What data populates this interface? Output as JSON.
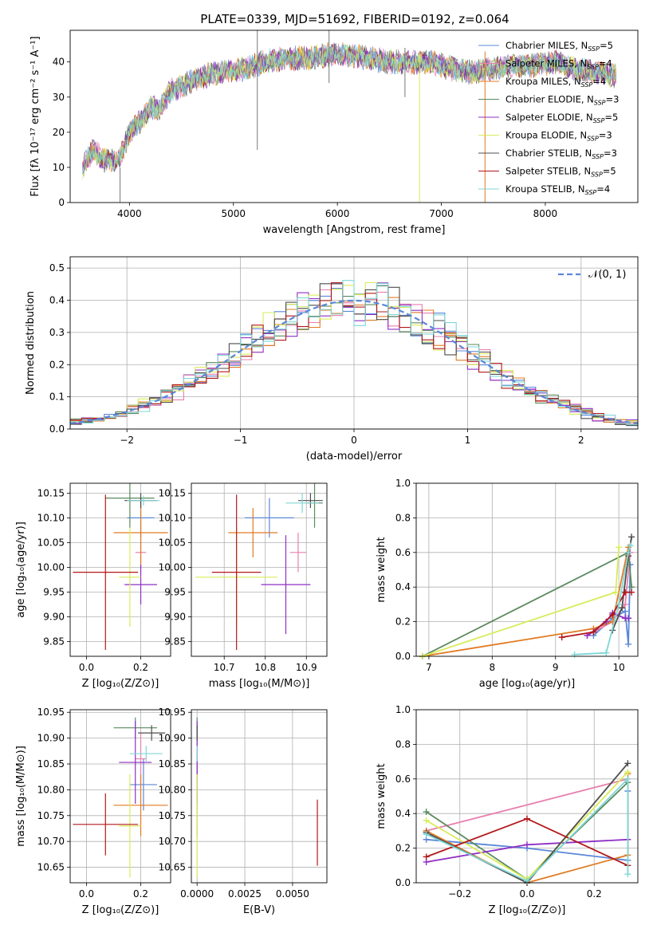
{
  "figure_title": "PLATE=0339, MJD=51692, FIBERID=0192, z=0.064",
  "colors": {
    "Chabrier MILES": "#5b87d8",
    "Salpeter MILES": "#e87faf",
    "Kroupa MILES": "#e07a22",
    "Chabrier ELODIE": "#5a8a5e",
    "Salpeter ELODIE": "#8e2fc4",
    "Kroupa ELODIE": "#d8ec5a",
    "Chabrier STELIB": "#4d4d4d",
    "Salpeter STELIB": "#b2181b",
    "Kroupa STELIB": "#7fd6d6",
    "gaussian": "#5b87d8"
  },
  "chart_data": [
    {
      "id": "spectrum",
      "type": "line",
      "title": "PLATE=0339, MJD=51692, FIBERID=0192, z=0.064",
      "xlabel": "wavelength [Angstrom, rest frame]",
      "ylabel": "Flux [fλ 10⁻¹⁷ erg cm⁻² s⁻¹ A⁻¹]",
      "xlim": [
        3430,
        8890
      ],
      "ylim": [
        0,
        49
      ],
      "xticks": [
        4000,
        5000,
        6000,
        7000,
        8000
      ],
      "yticks": [
        0,
        10,
        20,
        30,
        40
      ],
      "legend_position": "top-right",
      "legend": [
        {
          "label": "Chabrier MILES, N",
          "sub": "SSP",
          "suffix": "=5"
        },
        {
          "label": "Salpeter MILES, N",
          "sub": "SSP",
          "suffix": "=4"
        },
        {
          "label": "Kroupa MILES, N",
          "sub": "SSP",
          "suffix": "=4"
        },
        {
          "label": "Chabrier ELODIE, N",
          "sub": "SSP",
          "suffix": "=3"
        },
        {
          "label": "Salpeter ELODIE, N",
          "sub": "SSP",
          "suffix": "=5"
        },
        {
          "label": "Kroupa ELODIE, N",
          "sub": "SSP",
          "suffix": "=3"
        },
        {
          "label": "Chabrier STELIB, N",
          "sub": "SSP",
          "suffix": "=3"
        },
        {
          "label": "Salpeter STELIB, N",
          "sub": "SSP",
          "suffix": "=5"
        },
        {
          "label": "Kroupa STELIB, N",
          "sub": "SSP",
          "suffix": "=4"
        }
      ],
      "x_range": [
        3550,
        8680
      ],
      "continuum_knots": [
        [
          3550,
          10
        ],
        [
          3650,
          15
        ],
        [
          3750,
          12
        ],
        [
          3900,
          12
        ],
        [
          4000,
          20
        ],
        [
          4100,
          23
        ],
        [
          4200,
          27
        ],
        [
          4300,
          27
        ],
        [
          4400,
          32
        ],
        [
          4500,
          33
        ],
        [
          4700,
          36
        ],
        [
          4900,
          37
        ],
        [
          5100,
          38
        ],
        [
          5300,
          40
        ],
        [
          5500,
          41
        ],
        [
          5700,
          41
        ],
        [
          5900,
          42
        ],
        [
          6100,
          42
        ],
        [
          6300,
          41
        ],
        [
          6500,
          40
        ],
        [
          6700,
          40
        ],
        [
          6900,
          40
        ],
        [
          7100,
          38
        ],
        [
          7300,
          37
        ],
        [
          7500,
          38
        ],
        [
          7700,
          39
        ],
        [
          7900,
          39
        ],
        [
          8100,
          40
        ],
        [
          8300,
          38
        ],
        [
          8500,
          37
        ],
        [
          8680,
          36
        ]
      ],
      "spikes": [
        {
          "x": 5230,
          "y1": 15,
          "y2": 49
        },
        {
          "x": 5920,
          "y1": 34,
          "y2": 49
        },
        {
          "x": 6790,
          "y1": 0,
          "y2": 42
        },
        {
          "x": 7420,
          "y1": 0,
          "y2": 43
        },
        {
          "x": 3910,
          "y1": 0,
          "y2": 10
        },
        {
          "x": 6650,
          "y1": 30,
          "y2": 44
        }
      ]
    },
    {
      "id": "residuals",
      "type": "histogram",
      "xlabel": "(data-model)/error",
      "ylabel": "Normed distribution",
      "xlim": [
        -2.5,
        2.5
      ],
      "ylim": [
        0,
        0.535
      ],
      "xticks": [
        -2,
        -1,
        0,
        1,
        2
      ],
      "yticks": [
        0.0,
        0.1,
        0.2,
        0.3,
        0.4,
        0.5
      ],
      "grid": true,
      "bin_width": 0.1,
      "gaussian_label": "𝒩(0, 1)",
      "legend_position": "top-right",
      "series_style": "steps, one per fit model, scattered around N(0,1)"
    },
    {
      "id": "age_vs_Z",
      "type": "errorbar",
      "xlabel": "Z [log₁₀(Z/Z⊙)]",
      "ylabel": "age  [log₁₀(age/yr)]",
      "xlim": [
        -0.06,
        0.31
      ],
      "ylim": [
        9.82,
        10.17
      ],
      "xticks": [
        0.0,
        0.2
      ],
      "yticks": [
        9.85,
        9.9,
        9.95,
        10.0,
        10.05,
        10.1,
        10.15
      ],
      "grid": true,
      "points": [
        {
          "model": "Chabrier MILES",
          "x": 0.2,
          "xerr": 0.05,
          "y": 10.1,
          "yerr": 0.04
        },
        {
          "model": "Salpeter MILES",
          "x": 0.2,
          "xerr": 0.02,
          "y": 10.03,
          "yerr": 0.04
        },
        {
          "model": "Kroupa MILES",
          "x": 0.2,
          "xerr": 0.1,
          "y": 10.07,
          "yerr": 0.07
        },
        {
          "model": "Chabrier ELODIE",
          "x": 0.16,
          "xerr": 0.09,
          "y": 10.14,
          "yerr": 0.06
        },
        {
          "model": "Salpeter ELODIE",
          "x": 0.2,
          "xerr": 0.06,
          "y": 9.965,
          "yerr": 0.04
        },
        {
          "model": "Kroupa ELODIE",
          "x": 0.16,
          "xerr": 0.04,
          "y": 9.98,
          "yerr": 0.1
        },
        {
          "model": "Chabrier STELIB",
          "x": 0.2,
          "xerr": 0.06,
          "y": 10.135,
          "yerr": 0.015
        },
        {
          "model": "Salpeter STELIB",
          "x": 0.07,
          "xerr": 0.12,
          "y": 9.99,
          "yerr": 0.157
        },
        {
          "model": "Kroupa STELIB",
          "x": 0.21,
          "xerr": 0.06,
          "y": 10.135,
          "yerr": 0.01
        }
      ]
    },
    {
      "id": "age_vs_mass",
      "type": "errorbar",
      "xlabel": "mass [log₁₀(M/M⊙)]",
      "xlim": [
        10.62,
        10.95
      ],
      "ylim": [
        9.82,
        10.17
      ],
      "xticks": [
        10.7,
        10.8,
        10.9
      ],
      "yticks": [
        9.85,
        9.9,
        9.95,
        10.0,
        10.05,
        10.1,
        10.15
      ],
      "grid": true,
      "points": [
        {
          "model": "Chabrier MILES",
          "x": 10.81,
          "xerr": 0.06,
          "y": 10.1,
          "yerr": 0.04
        },
        {
          "model": "Salpeter MILES",
          "x": 10.88,
          "xerr": 0.02,
          "y": 10.03,
          "yerr": 0.04
        },
        {
          "model": "Kroupa MILES",
          "x": 10.77,
          "xerr": 0.06,
          "y": 10.07,
          "yerr": 0.05
        },
        {
          "model": "Chabrier ELODIE",
          "x": 10.92,
          "xerr": 0.02,
          "y": 10.13,
          "yerr": 0.05
        },
        {
          "model": "Salpeter ELODIE",
          "x": 10.85,
          "xerr": 0.06,
          "y": 9.965,
          "yerr": 0.1
        },
        {
          "model": "Kroupa ELODIE",
          "x": 10.73,
          "xerr": 0.1,
          "y": 9.98,
          "yerr": 0.1
        },
        {
          "model": "Chabrier STELIB",
          "x": 10.91,
          "xerr": 0.03,
          "y": 10.135,
          "yerr": 0.015
        },
        {
          "model": "Salpeter STELIB",
          "x": 10.73,
          "xerr": 0.06,
          "y": 9.99,
          "yerr": 0.157
        },
        {
          "model": "Kroupa STELIB",
          "x": 10.89,
          "xerr": 0.04,
          "y": 10.13,
          "yerr": 0.02
        }
      ]
    },
    {
      "id": "weight_vs_age",
      "type": "line",
      "xlabel": "age  [log₁₀(age/yr)]",
      "ylabel": "mass weight",
      "xlim": [
        6.8,
        10.3
      ],
      "ylim": [
        0,
        1
      ],
      "xticks": [
        7,
        8,
        9,
        10
      ],
      "yticks": [
        0.0,
        0.2,
        0.4,
        0.6,
        0.8,
        1.0
      ],
      "grid": true,
      "series": [
        {
          "model": "Chabrier MILES",
          "x": [
            9.6,
            9.9,
            10.1,
            10.15,
            10.18
          ],
          "y": [
            0.12,
            0.22,
            0.26,
            0.07,
            0.53
          ]
        },
        {
          "model": "Salpeter MILES",
          "x": [
            9.5,
            9.9,
            10.1,
            10.18
          ],
          "y": [
            0.12,
            0.2,
            0.3,
            0.6
          ]
        },
        {
          "model": "Kroupa MILES",
          "x": [
            6.9,
            9.6,
            9.9,
            10.15
          ],
          "y": [
            0.0,
            0.16,
            0.2,
            0.63
          ]
        },
        {
          "model": "Chabrier ELODIE",
          "x": [
            6.9,
            10.15,
            10.2
          ],
          "y": [
            0.0,
            0.6,
            0.4
          ]
        },
        {
          "model": "Salpeter ELODIE",
          "x": [
            9.5,
            9.8,
            9.9,
            10.1,
            10.15
          ],
          "y": [
            0.12,
            0.2,
            0.25,
            0.22,
            0.22
          ]
        },
        {
          "model": "Kroupa ELODIE",
          "x": [
            6.9,
            9.95,
            10.0
          ],
          "y": [
            0.0,
            0.37,
            0.63
          ]
        },
        {
          "model": "Chabrier STELIB",
          "x": [
            9.9,
            10.05,
            10.15,
            10.2
          ],
          "y": [
            0.15,
            0.28,
            0.58,
            0.69
          ]
        },
        {
          "model": "Salpeter STELIB",
          "x": [
            9.1,
            9.6,
            9.9,
            10.1,
            10.2
          ],
          "y": [
            0.11,
            0.14,
            0.24,
            0.37,
            0.37
          ]
        },
        {
          "model": "Kroupa STELIB",
          "x": [
            9.3,
            9.8,
            10.0,
            10.15,
            10.18
          ],
          "y": [
            0.01,
            0.02,
            0.3,
            0.6,
            0.64
          ]
        }
      ]
    },
    {
      "id": "mass_vs_Z",
      "type": "errorbar",
      "xlabel": "Z [log₁₀(Z/Z⊙)]",
      "ylabel": "mass [log₁₀(M/M⊙)]",
      "xlim": [
        -0.06,
        0.31
      ],
      "ylim": [
        10.62,
        10.955
      ],
      "xticks": [
        0.0,
        0.2
      ],
      "yticks": [
        10.65,
        10.7,
        10.75,
        10.8,
        10.85,
        10.9,
        10.95
      ],
      "grid": true,
      "points": [
        {
          "model": "Chabrier MILES",
          "x": 0.21,
          "xerr": 0.05,
          "y": 10.81,
          "yerr": 0.05
        },
        {
          "model": "Salpeter MILES",
          "x": 0.2,
          "xerr": 0.02,
          "y": 10.86,
          "yerr": 0.05
        },
        {
          "model": "Kroupa MILES",
          "x": 0.2,
          "xerr": 0.1,
          "y": 10.77,
          "yerr": 0.06
        },
        {
          "model": "Chabrier ELODIE",
          "x": 0.18,
          "xerr": 0.08,
          "y": 10.92,
          "yerr": 0.02
        },
        {
          "model": "Salpeter ELODIE",
          "x": 0.18,
          "xerr": 0.06,
          "y": 10.853,
          "yerr": 0.08
        },
        {
          "model": "Kroupa ELODIE",
          "x": 0.16,
          "xerr": 0.04,
          "y": 10.73,
          "yerr": 0.1
        },
        {
          "model": "Chabrier STELIB",
          "x": 0.24,
          "xerr": 0.05,
          "y": 10.91,
          "yerr": 0.015
        },
        {
          "model": "Salpeter STELIB",
          "x": 0.07,
          "xerr": 0.12,
          "y": 10.733,
          "yerr": 0.06
        },
        {
          "model": "Kroupa STELIB",
          "x": 0.22,
          "xerr": 0.06,
          "y": 10.87,
          "yerr": 0.015
        }
      ]
    },
    {
      "id": "mass_vs_ebv",
      "type": "errorbar",
      "xlabel": "E(B-V)",
      "xlim": [
        -0.0003,
        0.0068
      ],
      "ylim": [
        10.62,
        10.955
      ],
      "xticks": [
        0.0,
        0.0025,
        0.005
      ],
      "xticklabels": [
        "0.0000",
        "0.0025",
        "0.0050"
      ],
      "yticks": [
        10.65,
        10.7,
        10.75,
        10.8,
        10.85,
        10.9,
        10.95
      ],
      "grid": true,
      "points": [
        {
          "model": "Chabrier MILES",
          "x": 0.0,
          "xerr": 0.0,
          "y": 10.81,
          "yerr": 0.05
        },
        {
          "model": "Salpeter MILES",
          "x": 0.0,
          "xerr": 0.0,
          "y": 10.86,
          "yerr": 0.05
        },
        {
          "model": "Kroupa MILES",
          "x": 0.0,
          "xerr": 0.0,
          "y": 10.77,
          "yerr": 0.06
        },
        {
          "model": "Chabrier ELODIE",
          "x": 0.0,
          "xerr": 0.0,
          "y": 10.92,
          "yerr": 0.02
        },
        {
          "model": "Salpeter ELODIE",
          "x": 0.0,
          "xerr": 0.0,
          "y": 10.853,
          "yerr": 0.08
        },
        {
          "model": "Kroupa ELODIE",
          "x": 0.0,
          "xerr": 0.0,
          "y": 10.73,
          "yerr": 0.1
        },
        {
          "model": "Chabrier STELIB",
          "x": 0.0,
          "xerr": 0.0,
          "y": 10.91,
          "yerr": 0.015
        },
        {
          "model": "Salpeter STELIB",
          "x": 0.0063,
          "xerr": 0.0,
          "y": 10.717,
          "yerr": 0.064
        },
        {
          "model": "Kroupa STELIB",
          "x": 0.0,
          "xerr": 0.0,
          "y": 10.87,
          "yerr": 0.015
        }
      ]
    },
    {
      "id": "weight_vs_Z",
      "type": "line",
      "xlabel": "Z [log₁₀(Z/Z⊙)]",
      "ylabel": "mass weight",
      "xlim": [
        -0.33,
        0.33
      ],
      "ylim": [
        0,
        1
      ],
      "xticks": [
        -0.2,
        0.0,
        0.2
      ],
      "yticks": [
        0.0,
        0.2,
        0.4,
        0.6,
        0.8,
        1.0
      ],
      "grid": true,
      "series": [
        {
          "model": "Chabrier MILES",
          "x": [
            -0.3,
            0.0,
            0.3,
            0.3
          ],
          "y": [
            0.25,
            0.2,
            0.13,
            0.53
          ]
        },
        {
          "model": "Salpeter MILES",
          "x": [
            -0.3,
            0.3
          ],
          "y": [
            0.3,
            0.6
          ]
        },
        {
          "model": "Kroupa MILES",
          "x": [
            -0.3,
            0.0,
            0.3,
            0.3
          ],
          "y": [
            0.3,
            0.0,
            0.16,
            0.63
          ]
        },
        {
          "model": "Chabrier ELODIE",
          "x": [
            -0.3,
            0.0,
            0.3
          ],
          "y": [
            0.41,
            0.02,
            0.58
          ]
        },
        {
          "model": "Salpeter ELODIE",
          "x": [
            -0.3,
            0.0,
            0.3
          ],
          "y": [
            0.12,
            0.22,
            0.25
          ]
        },
        {
          "model": "Kroupa ELODIE",
          "x": [
            -0.3,
            0.0,
            0.3
          ],
          "y": [
            0.36,
            0.02,
            0.64
          ]
        },
        {
          "model": "Chabrier STELIB",
          "x": [
            -0.3,
            0.0,
            0.3
          ],
          "y": [
            0.29,
            0.0,
            0.69
          ]
        },
        {
          "model": "Salpeter STELIB",
          "x": [
            -0.3,
            0.0,
            0.3
          ],
          "y": [
            0.15,
            0.37,
            0.1
          ]
        },
        {
          "model": "Kroupa STELIB",
          "x": [
            -0.3,
            0.0,
            0.3,
            0.3
          ],
          "y": [
            0.28,
            0.01,
            0.6,
            0.05
          ]
        }
      ]
    }
  ]
}
